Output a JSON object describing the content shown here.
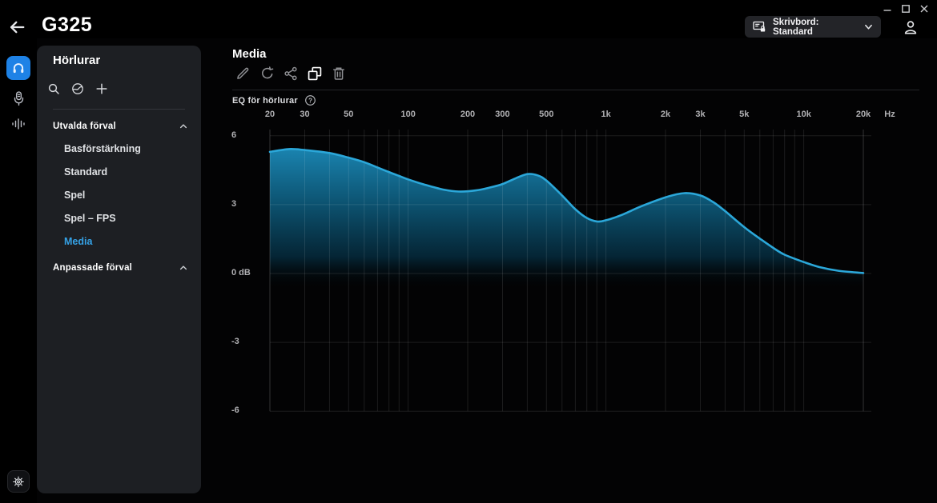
{
  "app": {
    "title": "G325"
  },
  "top_bar": {
    "profile_selector": {
      "label": "Skrivbord: Standard"
    },
    "window_controls": [
      "minimize",
      "maximize",
      "close"
    ]
  },
  "rail": {
    "items": [
      "headphones",
      "microphone",
      "soundwave"
    ],
    "active": "headphones",
    "footer": "settings"
  },
  "sidebar": {
    "heading": "Hörlurar",
    "toolbar_icons": [
      "search",
      "sync",
      "add"
    ],
    "sections": [
      {
        "label": "Utvalda förval",
        "expanded": true,
        "items": [
          "Basförstärkning",
          "Standard",
          "Spel",
          "Spel – FPS",
          "Media"
        ]
      },
      {
        "label": "Anpassade förval",
        "expanded": true,
        "items": []
      }
    ],
    "selected_item": "Media"
  },
  "main": {
    "title": "Media",
    "toolbar_icons": [
      "edit",
      "reset",
      "share",
      "duplicate",
      "delete"
    ],
    "eq_section_label": "EQ för hörlurar"
  },
  "chart_data": {
    "type": "area",
    "title": "EQ för hörlurar",
    "x_axis": {
      "scale": "log",
      "min": 20,
      "max": 20000,
      "unit": "Hz",
      "ticks": [
        {
          "f": 20,
          "label": "20"
        },
        {
          "f": 30,
          "label": "30"
        },
        {
          "f": 50,
          "label": "50"
        },
        {
          "f": 100,
          "label": "100"
        },
        {
          "f": 200,
          "label": "200"
        },
        {
          "f": 300,
          "label": "300"
        },
        {
          "f": 500,
          "label": "500"
        },
        {
          "f": 1000,
          "label": "1k"
        },
        {
          "f": 2000,
          "label": "2k"
        },
        {
          "f": 3000,
          "label": "3k"
        },
        {
          "f": 5000,
          "label": "5k"
        },
        {
          "f": 10000,
          "label": "10k"
        },
        {
          "f": 20000,
          "label": "20k"
        }
      ]
    },
    "y_axis": {
      "min": -6,
      "max": 6,
      "ticks": [
        {
          "db": 6,
          "label": "6"
        },
        {
          "db": 3,
          "label": "3"
        },
        {
          "db": 0,
          "label": "0 dB"
        },
        {
          "db": -3,
          "label": "-3"
        },
        {
          "db": -6,
          "label": "-6"
        }
      ]
    },
    "series": [
      {
        "name": "Media",
        "points": [
          [
            20,
            5.3
          ],
          [
            25,
            5.42
          ],
          [
            30,
            5.38
          ],
          [
            40,
            5.25
          ],
          [
            50,
            5.05
          ],
          [
            60,
            4.85
          ],
          [
            70,
            4.62
          ],
          [
            80,
            4.42
          ],
          [
            90,
            4.25
          ],
          [
            100,
            4.1
          ],
          [
            120,
            3.88
          ],
          [
            150,
            3.66
          ],
          [
            180,
            3.57
          ],
          [
            220,
            3.62
          ],
          [
            260,
            3.75
          ],
          [
            300,
            3.9
          ],
          [
            350,
            4.15
          ],
          [
            400,
            4.33
          ],
          [
            450,
            4.28
          ],
          [
            500,
            4.05
          ],
          [
            600,
            3.4
          ],
          [
            700,
            2.8
          ],
          [
            800,
            2.42
          ],
          [
            900,
            2.27
          ],
          [
            1000,
            2.32
          ],
          [
            1200,
            2.55
          ],
          [
            1500,
            2.92
          ],
          [
            2000,
            3.32
          ],
          [
            2500,
            3.5
          ],
          [
            3000,
            3.4
          ],
          [
            3500,
            3.1
          ],
          [
            4000,
            2.72
          ],
          [
            5000,
            2.02
          ],
          [
            6000,
            1.52
          ],
          [
            7000,
            1.12
          ],
          [
            8000,
            0.82
          ],
          [
            10000,
            0.5
          ],
          [
            12000,
            0.28
          ],
          [
            15000,
            0.12
          ],
          [
            20000,
            0.02
          ]
        ]
      }
    ],
    "grid": true,
    "legend": false,
    "colors": {
      "curve_stroke": "#2ba7d9",
      "fill_top": "#1f97c9",
      "fill_mid": "#0e5e80",
      "fill_deep": "#052b3d"
    }
  },
  "colors": {
    "accent_blue": "#1e82e6",
    "selected_text": "#35a2e6",
    "panel_bg": "#1d1f23"
  }
}
